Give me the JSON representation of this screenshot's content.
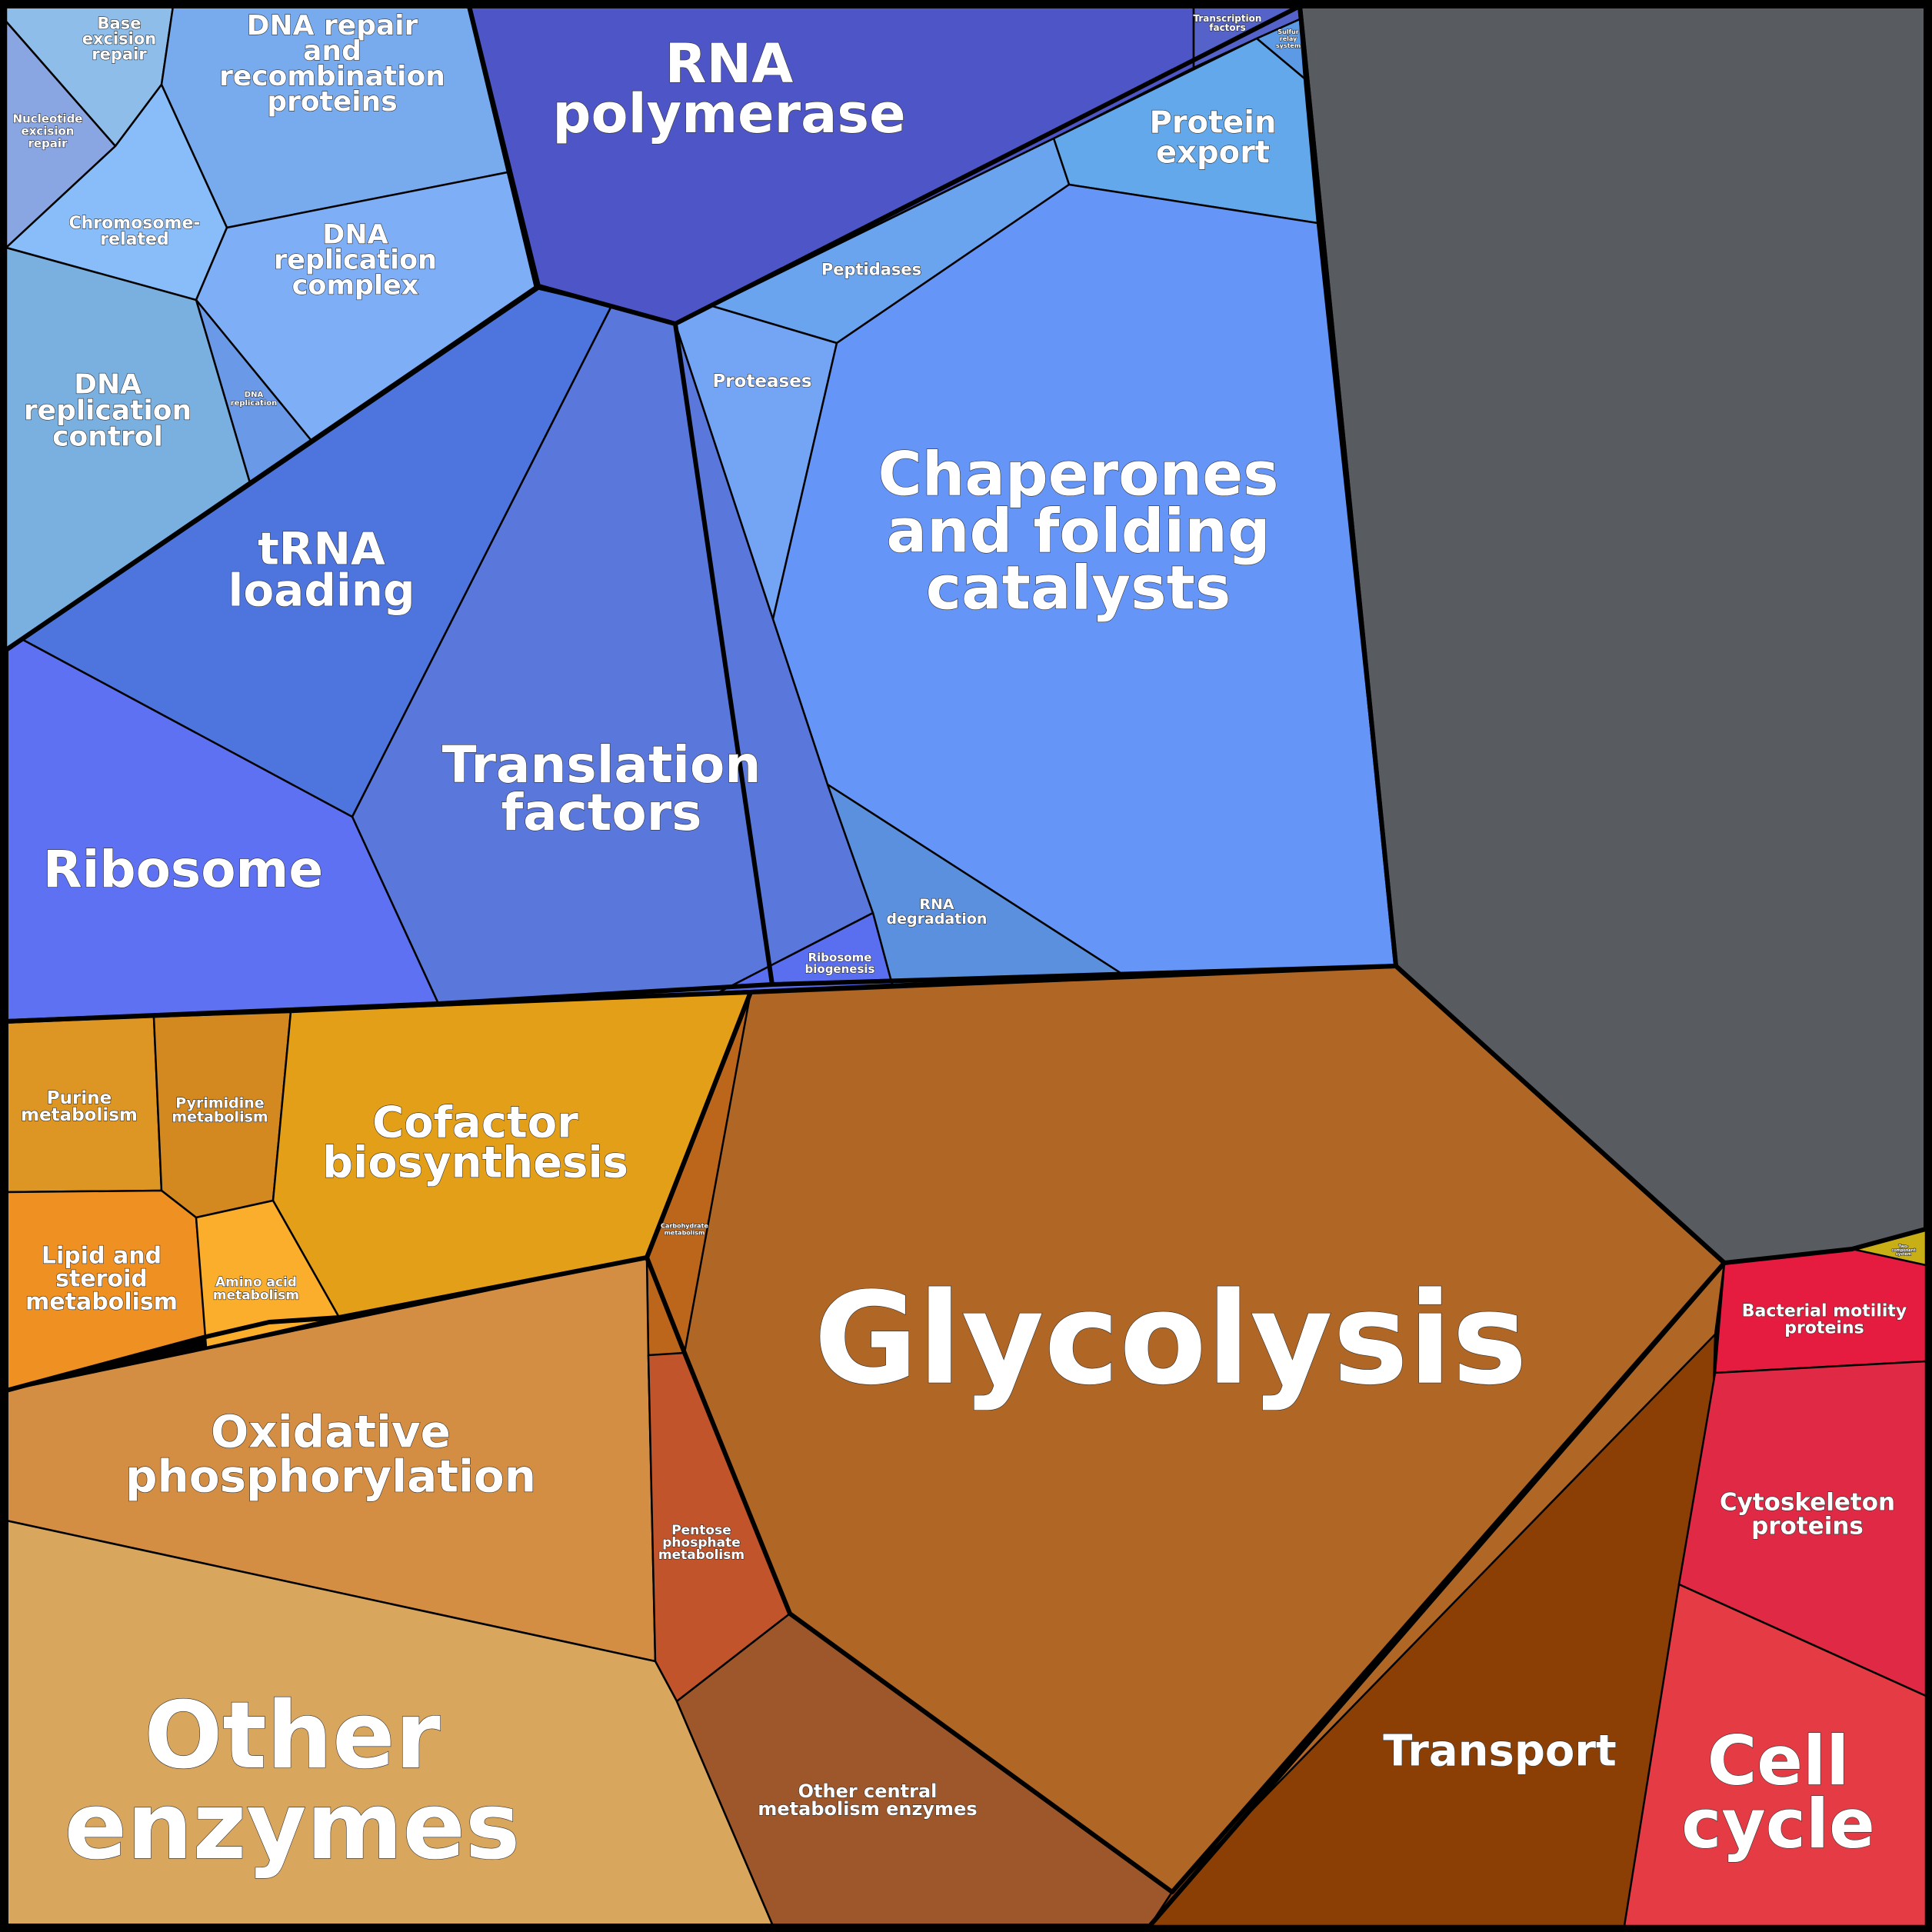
{
  "title": "Proteomap",
  "cells": [
    {
      "id": "base-excision-repair",
      "label": [
        "Base",
        "excision",
        "repair"
      ],
      "color": "#8dbde8"
    },
    {
      "id": "nucleotide-excision-repair",
      "label": [
        "Nucleotide",
        "excision",
        "repair"
      ],
      "color": "#8aa6e2"
    },
    {
      "id": "dna-repair-recombination",
      "label": [
        "DNA repair",
        "and",
        "recombination",
        "proteins"
      ],
      "color": "#78aaee"
    },
    {
      "id": "chromosome-related",
      "label": [
        "Chromosome-",
        "related"
      ],
      "color": "#88bdf9"
    },
    {
      "id": "dna-replication-complex",
      "label": [
        "DNA",
        "replication",
        "complex"
      ],
      "color": "#7eaef5"
    },
    {
      "id": "dna-replication-small",
      "label": [
        "DNA",
        "replication"
      ],
      "color": "#6a99e8"
    },
    {
      "id": "dna-replication-control",
      "label": [
        "DNA",
        "replication",
        "control"
      ],
      "color": "#7ab0e0"
    },
    {
      "id": "rna-polymerase",
      "label": [
        "RNA",
        "polymerase"
      ],
      "color": "#4d55c7"
    },
    {
      "id": "transcription-factors",
      "label": [
        "Transcription",
        "factors"
      ],
      "color": "#5462c9"
    },
    {
      "id": "sulfur-relay-system",
      "label": [
        "Sulfur",
        "relay",
        "system"
      ],
      "color": "#5c9ae6"
    },
    {
      "id": "protein-export",
      "label": [
        "Protein",
        "export"
      ],
      "color": "#62a8eb"
    },
    {
      "id": "peptidases",
      "label": [
        "Peptidases"
      ],
      "color": "#6aa4ee"
    },
    {
      "id": "proteases",
      "label": [
        "Proteases"
      ],
      "color": "#74a4f4"
    },
    {
      "id": "chaperones",
      "label": [
        "Chaperones",
        "and folding",
        "catalysts"
      ],
      "color": "#6595f6"
    },
    {
      "id": "trna-loading",
      "label": [
        "tRNA",
        "loading"
      ],
      "color": "#4e75de"
    },
    {
      "id": "translation-factors",
      "label": [
        "Translation",
        "factors"
      ],
      "color": "#5a77db"
    },
    {
      "id": "ribosome",
      "label": [
        "Ribosome"
      ],
      "color": "#5f71f3"
    },
    {
      "id": "rna-degradation",
      "label": [
        "RNA",
        "degradation"
      ],
      "color": "#5a90dd"
    },
    {
      "id": "ribosome-biogenesis",
      "label": [
        "Ribosome",
        "biogenesis"
      ],
      "color": "#5a6ff0"
    },
    {
      "id": "unassigned",
      "label": [],
      "color": "#585c61"
    },
    {
      "id": "purine-metabolism",
      "label": [
        "Purine",
        "metabolism"
      ],
      "color": "#dd9624"
    },
    {
      "id": "pyrimidine-metabolism",
      "label": [
        "Pyrimidine",
        "metabolism"
      ],
      "color": "#d3891f"
    },
    {
      "id": "cofactor-biosynthesis",
      "label": [
        "Cofactor",
        "biosynthesis"
      ],
      "color": "#e49f18"
    },
    {
      "id": "lipid-steroid-metabolism",
      "label": [
        "Lipid and",
        "steroid",
        "metabolism"
      ],
      "color": "#ee9022"
    },
    {
      "id": "amino-acid-metabolism",
      "label": [
        "Amino acid",
        "metabolism"
      ],
      "color": "#fbae2b"
    },
    {
      "id": "carbohydrate-metabolism",
      "label": [
        "Carbohydrate",
        "metabolism"
      ],
      "color": "#bc661c"
    },
    {
      "id": "glycolysis",
      "label": [
        "Glycolysis"
      ],
      "color": "#b06625"
    },
    {
      "id": "oxidative-phosphorylation",
      "label": [
        "Oxidative",
        "phosphorylation"
      ],
      "color": "#d38e43"
    },
    {
      "id": "pentose-phosphate",
      "label": [
        "Pentose",
        "phosphate",
        "metabolism"
      ],
      "color": "#c1542b"
    },
    {
      "id": "other-enzymes",
      "label": [
        "Other",
        "enzymes"
      ],
      "color": "#d9a65e"
    },
    {
      "id": "other-central-metabolism",
      "label": [
        "Other central",
        "metabolism enzymes"
      ],
      "color": "#9e572a"
    },
    {
      "id": "transport",
      "label": [
        "Transport"
      ],
      "color": "#8c3f05"
    },
    {
      "id": "two-component-system",
      "label": [
        "Two-",
        "component",
        "system"
      ],
      "color": "#c8af16"
    },
    {
      "id": "bacterial-motility",
      "label": [
        "Bacterial motility",
        "proteins"
      ],
      "color": "#e51b40"
    },
    {
      "id": "cytoskeleton-proteins",
      "label": [
        "Cytoskeleton",
        "proteins"
      ],
      "color": "#e02945"
    },
    {
      "id": "cell-cycle",
      "label": [
        "Cell",
        "cycle"
      ],
      "color": "#e43b45"
    }
  ]
}
